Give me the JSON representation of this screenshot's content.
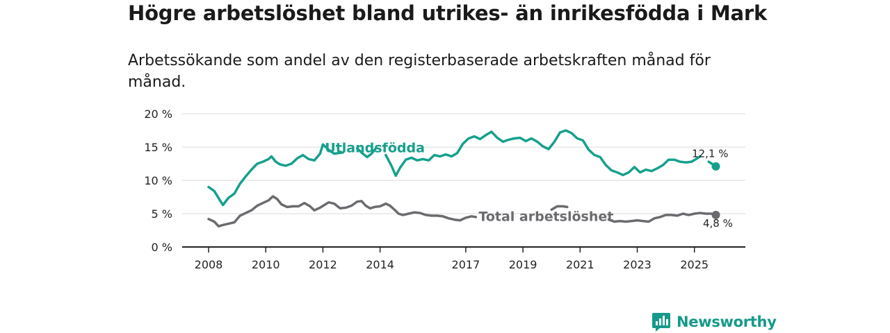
{
  "title": "Högre arbetslöshet bland utrikes- än inrikesfödda i Mark",
  "subtitle": "Arbetssökande som andel av den registerbaserade arbetskraften månad för månad.",
  "brand": "Newsworthy",
  "colors": {
    "utlandsfodda": "#16a08c",
    "total": "#6b6b6f",
    "grid": "#d8d8d8",
    "axis": "#222222",
    "brand": "#159a89"
  },
  "chart_data": {
    "type": "line",
    "title": "Högre arbetslöshet bland utrikes- än inrikesfödda i Mark",
    "subtitle": "Arbetssökande som andel av den registerbaserade arbetskraften månad för månad.",
    "xlabel": "",
    "ylabel": "",
    "ylim": [
      0,
      20
    ],
    "xlim": [
      2008.0,
      2026.2
    ],
    "yticks": [
      0,
      5,
      10,
      15,
      20
    ],
    "ytick_labels": [
      "0 %",
      "5 %",
      "10 %",
      "15 %",
      "20 %"
    ],
    "xticks": [
      2008,
      2010,
      2012,
      2014,
      2017,
      2019,
      2021,
      2023,
      2025
    ],
    "xtick_labels": [
      "2008",
      "2010",
      "2012",
      "2014",
      "2017",
      "2019",
      "2021",
      "2023",
      "2025"
    ],
    "grid": true,
    "series": [
      {
        "name": "Utlandsfödda",
        "label": "Utlandsfödda",
        "end_label": "12,1 %",
        "end_value": 12.1,
        "points": [
          [
            2008.0,
            9.0
          ],
          [
            2008.2,
            8.4
          ],
          [
            2008.4,
            7.0
          ],
          [
            2008.5,
            6.3
          ],
          [
            2008.7,
            7.4
          ],
          [
            2008.9,
            8.0
          ],
          [
            2009.1,
            9.5
          ],
          [
            2009.3,
            10.6
          ],
          [
            2009.5,
            11.6
          ],
          [
            2009.7,
            12.5
          ],
          [
            2009.9,
            12.8
          ],
          [
            2010.1,
            13.2
          ],
          [
            2010.2,
            13.6
          ],
          [
            2010.35,
            12.8
          ],
          [
            2010.5,
            12.4
          ],
          [
            2010.7,
            12.2
          ],
          [
            2010.9,
            12.5
          ],
          [
            2011.1,
            13.3
          ],
          [
            2011.3,
            13.8
          ],
          [
            2011.5,
            13.2
          ],
          [
            2011.7,
            13.0
          ],
          [
            2011.9,
            14.0
          ],
          [
            2012.0,
            15.4
          ],
          [
            2012.2,
            14.6
          ],
          [
            2012.4,
            14.0
          ],
          [
            2012.55,
            14.1
          ],
          [
            2012.7,
            14.2
          ],
          null,
          [
            2013.2,
            14.8
          ],
          [
            2013.4,
            14.0
          ],
          [
            2013.55,
            13.5
          ],
          [
            2013.7,
            14.0
          ],
          [
            2013.85,
            14.8
          ],
          null,
          [
            2014.2,
            13.8
          ],
          [
            2014.4,
            12.2
          ],
          [
            2014.55,
            10.7
          ],
          [
            2014.7,
            11.9
          ],
          [
            2014.9,
            13.1
          ],
          [
            2015.1,
            13.4
          ],
          [
            2015.3,
            13.0
          ],
          [
            2015.5,
            13.2
          ],
          [
            2015.7,
            13.0
          ],
          [
            2015.9,
            13.8
          ],
          [
            2016.1,
            13.6
          ],
          [
            2016.3,
            13.9
          ],
          [
            2016.5,
            13.6
          ],
          [
            2016.7,
            14.1
          ],
          [
            2016.9,
            15.5
          ],
          [
            2017.1,
            16.3
          ],
          [
            2017.3,
            16.6
          ],
          [
            2017.5,
            16.2
          ],
          [
            2017.7,
            16.8
          ],
          [
            2017.9,
            17.3
          ],
          [
            2018.1,
            16.4
          ],
          [
            2018.3,
            15.8
          ],
          [
            2018.5,
            16.1
          ],
          [
            2018.7,
            16.3
          ],
          [
            2018.9,
            16.4
          ],
          [
            2019.1,
            15.9
          ],
          [
            2019.3,
            16.3
          ],
          [
            2019.5,
            15.8
          ],
          [
            2019.7,
            15.1
          ],
          [
            2019.9,
            14.7
          ],
          [
            2020.1,
            15.8
          ],
          [
            2020.3,
            17.2
          ],
          [
            2020.5,
            17.5
          ],
          [
            2020.7,
            17.1
          ],
          [
            2020.9,
            16.3
          ],
          [
            2021.1,
            16.0
          ],
          [
            2021.3,
            14.6
          ],
          [
            2021.5,
            13.8
          ],
          [
            2021.7,
            13.5
          ],
          [
            2021.9,
            12.3
          ],
          [
            2022.1,
            11.5
          ],
          [
            2022.3,
            11.2
          ],
          [
            2022.5,
            10.8
          ],
          [
            2022.7,
            11.2
          ],
          [
            2022.9,
            12.0
          ],
          [
            2023.1,
            11.2
          ],
          [
            2023.3,
            11.6
          ],
          [
            2023.5,
            11.4
          ],
          [
            2023.7,
            11.8
          ],
          [
            2023.9,
            12.3
          ],
          [
            2024.1,
            13.1
          ],
          [
            2024.3,
            13.1
          ],
          [
            2024.5,
            12.8
          ],
          [
            2024.7,
            12.7
          ],
          [
            2024.9,
            12.8
          ],
          [
            2025.1,
            13.3
          ],
          [
            2025.2,
            13.6
          ],
          null,
          [
            2025.5,
            12.8
          ],
          [
            2025.75,
            12.1
          ]
        ]
      },
      {
        "name": "Total arbetslöshet",
        "label": "Total arbetslöshet",
        "end_label": "4,8 %",
        "end_value": 4.8,
        "points": [
          [
            2008.0,
            4.2
          ],
          [
            2008.2,
            3.8
          ],
          [
            2008.35,
            3.1
          ],
          [
            2008.5,
            3.3
          ],
          [
            2008.7,
            3.5
          ],
          [
            2008.9,
            3.7
          ],
          [
            2009.1,
            4.7
          ],
          [
            2009.3,
            5.1
          ],
          [
            2009.5,
            5.5
          ],
          [
            2009.7,
            6.2
          ],
          [
            2009.9,
            6.6
          ],
          [
            2010.1,
            7.0
          ],
          [
            2010.25,
            7.6
          ],
          [
            2010.4,
            7.2
          ],
          [
            2010.55,
            6.4
          ],
          [
            2010.75,
            6.0
          ],
          [
            2010.95,
            6.1
          ],
          [
            2011.15,
            6.1
          ],
          [
            2011.35,
            6.6
          ],
          [
            2011.55,
            6.1
          ],
          [
            2011.7,
            5.5
          ],
          [
            2011.9,
            5.9
          ],
          [
            2012.05,
            6.3
          ],
          [
            2012.2,
            6.7
          ],
          [
            2012.4,
            6.5
          ],
          [
            2012.6,
            5.8
          ],
          [
            2012.8,
            5.9
          ],
          [
            2013.0,
            6.2
          ],
          [
            2013.2,
            6.8
          ],
          [
            2013.35,
            6.9
          ],
          [
            2013.5,
            6.2
          ],
          [
            2013.65,
            5.8
          ],
          [
            2013.8,
            6.0
          ],
          [
            2014.0,
            6.1
          ],
          [
            2014.2,
            6.5
          ],
          [
            2014.35,
            6.2
          ],
          [
            2014.5,
            5.6
          ],
          [
            2014.65,
            5.0
          ],
          [
            2014.8,
            4.8
          ],
          [
            2015.0,
            5.0
          ],
          [
            2015.2,
            5.2
          ],
          [
            2015.4,
            5.1
          ],
          [
            2015.6,
            4.8
          ],
          [
            2015.8,
            4.7
          ],
          [
            2016.0,
            4.7
          ],
          [
            2016.2,
            4.6
          ],
          [
            2016.4,
            4.3
          ],
          [
            2016.6,
            4.1
          ],
          [
            2016.8,
            4.0
          ],
          [
            2017.0,
            4.4
          ],
          [
            2017.2,
            4.6
          ],
          [
            2017.35,
            4.5
          ],
          null,
          [
            2020.0,
            5.6
          ],
          [
            2020.2,
            6.1
          ],
          [
            2020.4,
            6.1
          ],
          [
            2020.55,
            6.0
          ],
          null,
          [
            2022.0,
            4.1
          ],
          [
            2022.2,
            3.8
          ],
          [
            2022.4,
            3.9
          ],
          [
            2022.6,
            3.8
          ],
          [
            2022.8,
            3.9
          ],
          [
            2023.0,
            4.0
          ],
          [
            2023.2,
            3.9
          ],
          [
            2023.4,
            3.8
          ],
          [
            2023.6,
            4.3
          ],
          [
            2023.8,
            4.5
          ],
          [
            2024.0,
            4.8
          ],
          [
            2024.2,
            4.8
          ],
          [
            2024.4,
            4.7
          ],
          [
            2024.6,
            5.0
          ],
          [
            2024.8,
            4.8
          ],
          [
            2025.0,
            5.0
          ],
          [
            2025.2,
            5.1
          ],
          [
            2025.4,
            5.0
          ],
          [
            2025.6,
            5.0
          ],
          [
            2025.75,
            4.8
          ]
        ]
      }
    ]
  }
}
